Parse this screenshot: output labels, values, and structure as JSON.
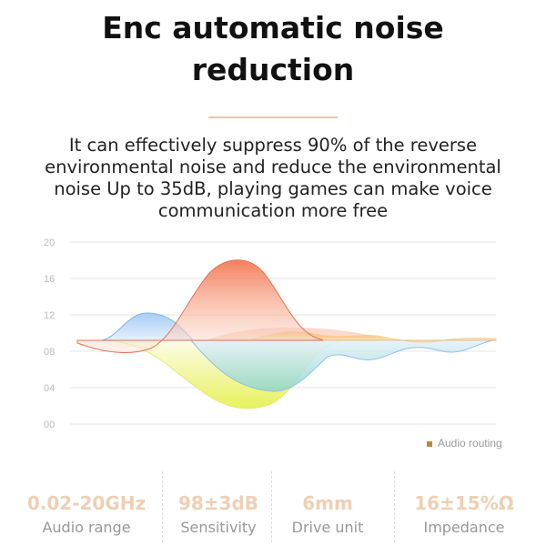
{
  "header": {
    "title_line1": "Enc automatic noise",
    "title_line2": "reduction"
  },
  "description": {
    "line1": "It can effectively suppress 90% of the reverse",
    "line2": "environmental noise and reduce the environmental",
    "line3": "noise Up to 35dB, playing games can make voice",
    "line4": "communication more free"
  },
  "chart": {
    "y_ticks": [
      "20",
      "16",
      "12",
      "08",
      "04",
      "00"
    ],
    "legend": "Audio routing",
    "legend_color": "#c0863a",
    "series_colors": [
      "#f0623a",
      "#7fb6ee",
      "#e6f055",
      "#f5b14a"
    ]
  },
  "specs": [
    {
      "value": "0.02-20GHz",
      "label": "Audio range"
    },
    {
      "value": "98±3dB",
      "label": "Sensitivity"
    },
    {
      "value": "6mm",
      "label": "Drive unit"
    },
    {
      "value": "16±15%Ω",
      "label": "Impedance"
    }
  ],
  "colors": {
    "accent": "#efcfb3",
    "rule": "#e8c6a8"
  }
}
